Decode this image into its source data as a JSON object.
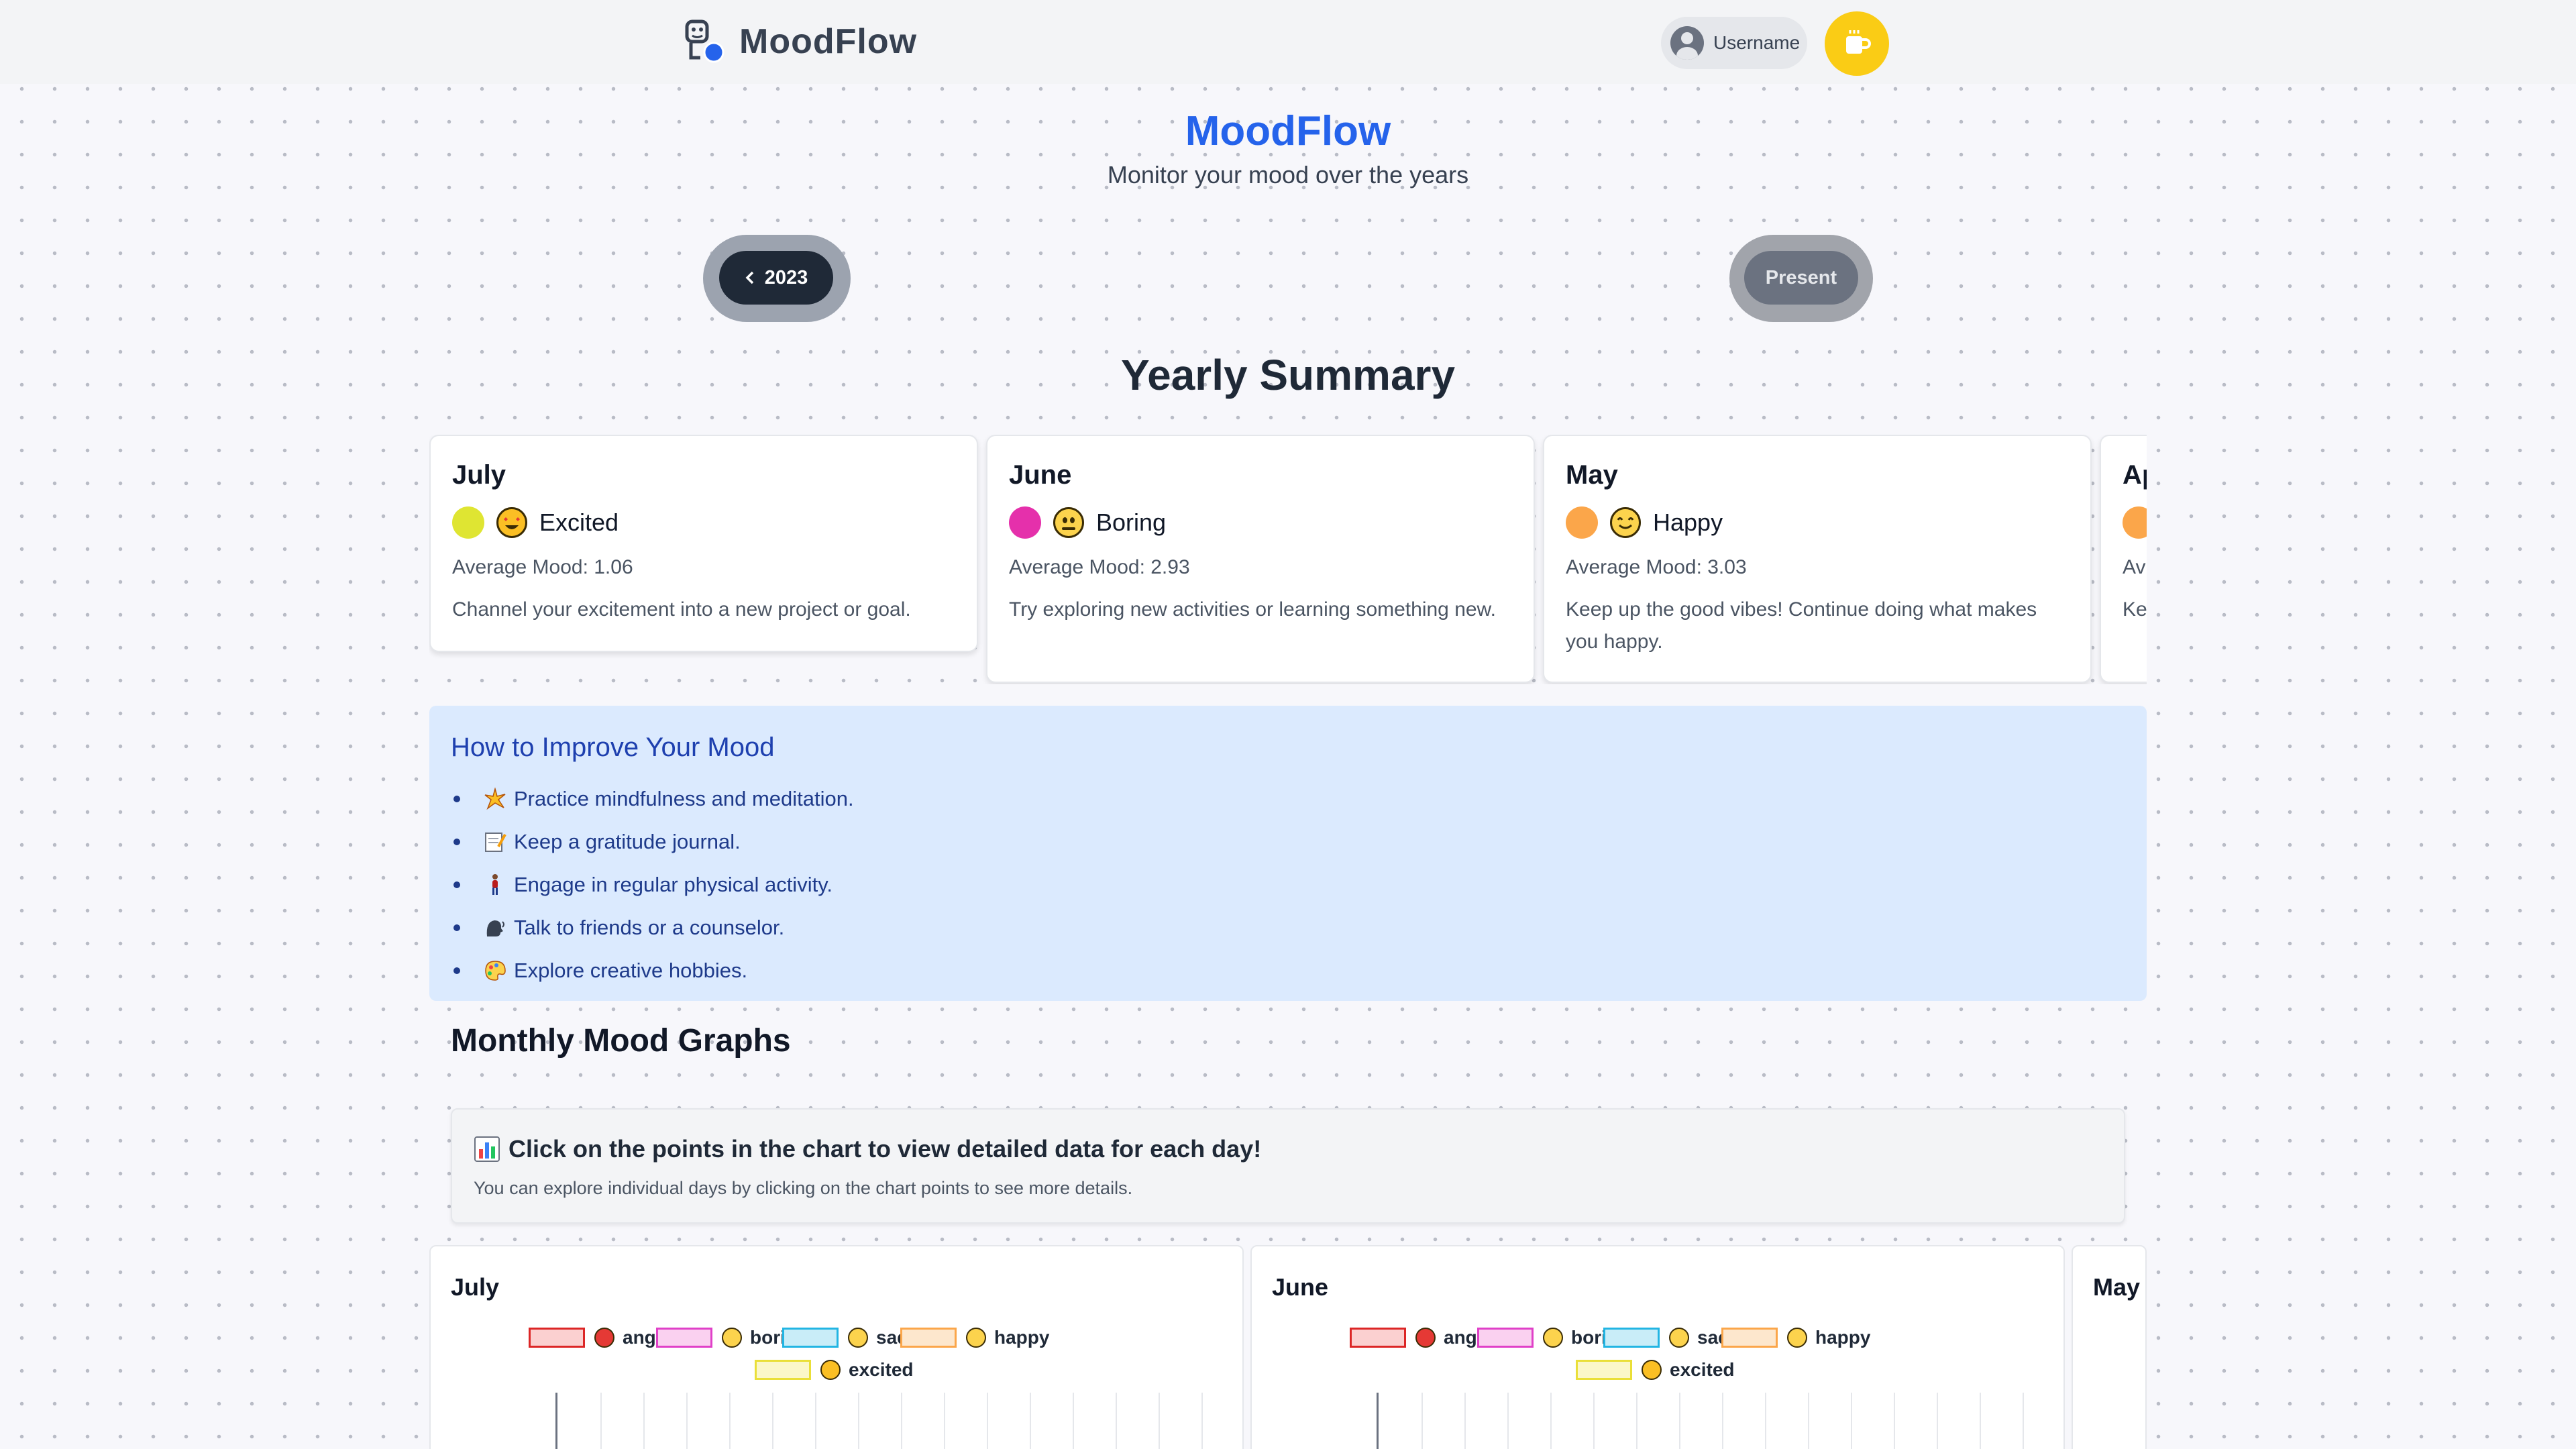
{
  "header": {
    "brand": "MoodFlow",
    "username": "Username",
    "logo_icon": "mood-logo-icon",
    "coffee_icon": "coffee-cup-icon"
  },
  "hero": {
    "title": "MoodFlow",
    "subtitle": "Monitor your mood over the years"
  },
  "navigation": {
    "prev_label": "2023",
    "prev_icon": "chevron-left-icon",
    "next_label": "Present"
  },
  "summary": {
    "title": "Yearly Summary",
    "cards": [
      {
        "month": "July",
        "mood": "Excited",
        "dot_color": "#dfe532",
        "average": "Average Mood: 1.06",
        "tip": "Channel your excitement into a new project or goal."
      },
      {
        "month": "June",
        "mood": "Boring",
        "dot_color": "#e530ab",
        "average": "Average Mood: 2.93",
        "tip": "Try exploring new activities or learning something new."
      },
      {
        "month": "May",
        "mood": "Happy",
        "dot_color": "#fba64a",
        "average": "Average Mood: 3.03",
        "tip": "Keep up the good vibes! Continue doing what makes you happy."
      },
      {
        "month": "Ap",
        "mood": "",
        "dot_color": "#fba64a",
        "average": "Av",
        "tip": "Ke yo"
      }
    ]
  },
  "improve": {
    "title": "How to Improve Your Mood",
    "tips": [
      {
        "text": "Practice mindfulness and meditation.",
        "icon": "sparkle-icon"
      },
      {
        "text": "Keep a gratitude journal.",
        "icon": "memo-icon"
      },
      {
        "text": "Engage in regular physical activity.",
        "icon": "walking-person-icon"
      },
      {
        "text": "Talk to friends or a counselor.",
        "icon": "speaking-head-icon"
      },
      {
        "text": "Explore creative hobbies.",
        "icon": "palette-icon"
      }
    ]
  },
  "graphs": {
    "title": "Monthly Mood Graphs",
    "info_title": "Click on the points in the chart to view detailed data for each day!",
    "info_icon": "bar-chart-icon",
    "info_sub": "You can explore individual days by clicking on the chart points to see more details.",
    "legend": [
      {
        "label": "angry",
        "stroke": "#dc2626",
        "fill": "#fbd0d0",
        "emoji_color": "#e53935"
      },
      {
        "label": "boring",
        "stroke": "#e040c8",
        "fill": "#fad1f0",
        "emoji_color": "#fcd34d"
      },
      {
        "label": "sad",
        "stroke": "#22b5e3",
        "fill": "#c9edf8",
        "emoji_color": "#fcd34d"
      },
      {
        "label": "happy",
        "stroke": "#fba64a",
        "fill": "#fde7cd",
        "emoji_color": "#fcd34d"
      },
      {
        "label": "excited",
        "stroke": "#eadf38",
        "fill": "#fbf7c9",
        "emoji_color": "#fbbf24"
      }
    ],
    "charts": [
      {
        "month": "July"
      },
      {
        "month": "June"
      },
      {
        "month": "May"
      }
    ]
  }
}
